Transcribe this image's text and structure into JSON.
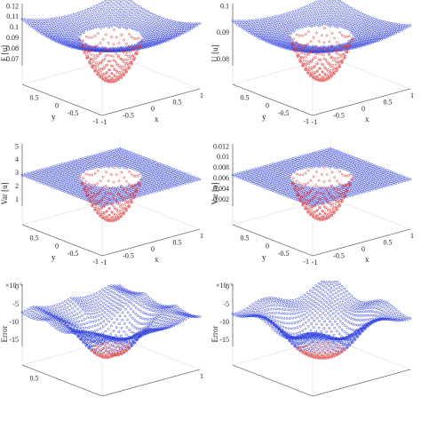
{
  "panels": [
    {
      "zlabel": "E [u]",
      "zticks": [
        "0.12",
        "0.11",
        "0.1",
        "0.09",
        "0.08",
        "0.07"
      ],
      "yticks": [
        "0.5",
        "0",
        "-0.5",
        "-1"
      ],
      "xticks": [
        "-1",
        "-0.5",
        "0",
        "0.5",
        "1"
      ],
      "xlabel": "x",
      "ylabel": "y"
    },
    {
      "zlabel": "U [u]",
      "zticks": [
        "0.1",
        "0.09",
        "0.08"
      ],
      "yticks": [
        "0.5",
        "0",
        "-0.5",
        "-1"
      ],
      "xticks": [
        "-1",
        "-0.5",
        "0",
        "0.5",
        "1"
      ],
      "xlabel": "x",
      "ylabel": "y"
    },
    {
      "zlabel": "Var [u]",
      "zticks": [
        "5",
        "4",
        "3",
        "2",
        "1"
      ],
      "yticks": [
        "0.5",
        "0",
        "-0.5",
        "-1"
      ],
      "xticks": [
        "-1",
        "-0.5",
        "0",
        "0.5",
        "1"
      ],
      "xlabel": "x",
      "ylabel": "y"
    },
    {
      "zlabel": "Var [u]",
      "zticks": [
        "0.012",
        "0.01",
        "0.008",
        "0.006",
        "0.004",
        "0.002"
      ],
      "yticks": [
        "0.5",
        "0",
        "-0.5",
        "-1"
      ],
      "xticks": [
        "-1",
        "-0.5",
        "0",
        "0.5",
        "1"
      ],
      "xlabel": "x",
      "ylabel": "y"
    },
    {
      "zlabel": "Error",
      "exponent": "×10⁻⁶",
      "zticks": [
        "0",
        "-5",
        "-10",
        "-15"
      ],
      "yticks": [
        "0.5"
      ],
      "xticks": [
        "1"
      ]
    },
    {
      "zlabel": "Error",
      "exponent": "×10⁻⁶",
      "zticks": [
        "0",
        "-5",
        "-10",
        "-15"
      ],
      "yticks": [],
      "xticks": []
    }
  ]
}
